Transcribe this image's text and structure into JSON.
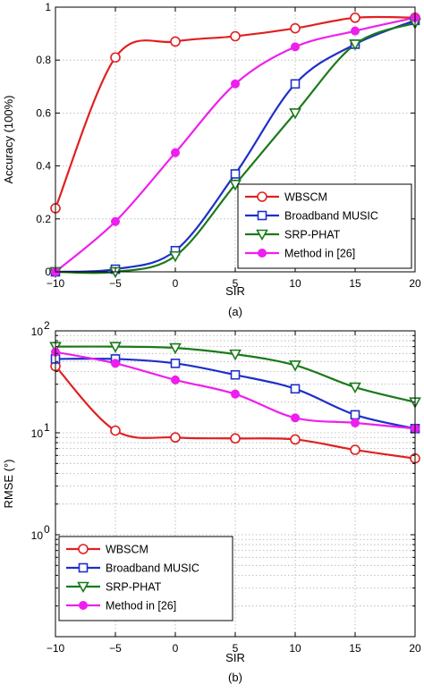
{
  "chart_data": [
    {
      "type": "line",
      "x": [
        -10,
        -5,
        0,
        5,
        10,
        15,
        20
      ],
      "xlabel": "SIR",
      "ylabel": "Accuracy (100%)",
      "xlim": [
        -10,
        20
      ],
      "ylim": [
        0,
        1
      ],
      "yscale": "linear",
      "grid": true,
      "caption": "(a)",
      "legend_position": "bottom-right",
      "xticks": [
        "−10",
        "−5",
        "0",
        "5",
        "10",
        "15",
        "20"
      ],
      "yticks": [
        "0",
        "0.2",
        "0.4",
        "0.6",
        "0.8",
        "1"
      ],
      "series": [
        {
          "name": "WBSCM",
          "color": "#e02020",
          "marker": "circle-open",
          "values": [
            0.24,
            0.81,
            0.87,
            0.89,
            0.92,
            0.96,
            0.96
          ]
        },
        {
          "name": "Broadband MUSIC",
          "color": "#1f2fc8",
          "marker": "square-open",
          "values": [
            0.0,
            0.01,
            0.08,
            0.37,
            0.71,
            0.86,
            0.95
          ]
        },
        {
          "name": "SRP-PHAT",
          "color": "#1a7a1a",
          "marker": "triangle-down-open",
          "values": [
            0.0,
            0.0,
            0.06,
            0.33,
            0.6,
            0.86,
            0.94
          ]
        },
        {
          "name": "Method in [26]",
          "color": "#ee1fee",
          "marker": "circle-filled",
          "values": [
            0.0,
            0.19,
            0.45,
            0.71,
            0.85,
            0.91,
            0.96
          ]
        }
      ]
    },
    {
      "type": "line",
      "x": [
        -10,
        -5,
        0,
        5,
        10,
        15,
        20
      ],
      "xlabel": "SIR",
      "ylabel": "RMSE (°)",
      "xlim": [
        -10,
        20
      ],
      "ylim": [
        0.1,
        100
      ],
      "yscale": "log",
      "grid": true,
      "caption": "(b)",
      "legend_position": "bottom-left",
      "xticks": [
        "−10",
        "−5",
        "0",
        "5",
        "10",
        "15",
        "20"
      ],
      "yticks": [
        {
          "base": "10",
          "exp": "0"
        },
        {
          "base": "10",
          "exp": "1"
        },
        {
          "base": "10",
          "exp": "2"
        }
      ],
      "series": [
        {
          "name": "WBSCM",
          "color": "#e02020",
          "marker": "circle-open",
          "values": [
            45,
            10.5,
            9,
            8.8,
            8.6,
            6.8,
            5.6
          ]
        },
        {
          "name": "Broadband MUSIC",
          "color": "#1f2fc8",
          "marker": "square-open",
          "values": [
            53,
            53,
            48,
            37,
            27,
            15,
            11
          ]
        },
        {
          "name": "SRP-PHAT",
          "color": "#1a7a1a",
          "marker": "triangle-down-open",
          "values": [
            70,
            70,
            68,
            59,
            46,
            28,
            20
          ]
        },
        {
          "name": "Method in [26]",
          "color": "#ee1fee",
          "marker": "circle-filled",
          "values": [
            62,
            48,
            33,
            24,
            14,
            12.5,
            11
          ]
        }
      ]
    }
  ]
}
